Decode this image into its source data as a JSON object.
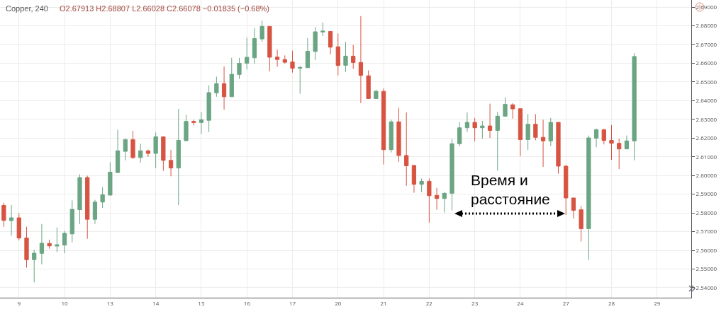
{
  "chart_data": {
    "type": "candlestick",
    "title": "Copper, 240",
    "subtitle": "O2.67913 H2.68807 L2.66028 C2.66078 −0.01835 (−0.68%)",
    "annotations": [
      "Время и расстояние"
    ],
    "categories": [
      null,
      null,
      "9",
      null,
      null,
      null,
      null,
      null,
      "10",
      null,
      null,
      null,
      null,
      null,
      "13",
      null,
      null,
      null,
      null,
      null,
      "14",
      null,
      null,
      null,
      null,
      null,
      "15",
      null,
      null,
      null,
      null,
      null,
      "16",
      null,
      null,
      null,
      null,
      null,
      "17",
      null,
      null,
      null,
      null,
      null,
      "20",
      null,
      null,
      null,
      null,
      null,
      "21",
      null,
      null,
      null,
      null,
      null,
      "22",
      null,
      null,
      null,
      null,
      null,
      "23",
      null,
      null,
      null,
      null,
      null,
      "24",
      null,
      null,
      null,
      null,
      null,
      "27",
      null,
      null,
      null,
      null,
      null,
      "28",
      null,
      null,
      null,
      null,
      null,
      "29",
      null,
      null,
      null,
      null
    ],
    "ohlc": [
      [
        2.584,
        2.5855,
        2.5726,
        2.576
      ],
      [
        2.5759,
        2.5842,
        2.5678,
        2.5774
      ],
      [
        2.5774,
        2.5798,
        2.5653,
        2.5666
      ],
      [
        2.5666,
        2.5726,
        2.5508,
        2.555
      ],
      [
        2.555,
        2.5603,
        2.5429,
        2.5585
      ],
      [
        2.5584,
        2.5741,
        2.5525,
        2.5638
      ],
      [
        2.5637,
        2.5657,
        2.5609,
        2.5624
      ],
      [
        2.5623,
        2.5722,
        2.559,
        2.563
      ],
      [
        2.5628,
        2.5704,
        2.5584,
        2.5691
      ],
      [
        2.5688,
        2.5867,
        2.5643,
        2.5819
      ],
      [
        2.5817,
        2.6006,
        2.5741,
        2.5989
      ],
      [
        2.5989,
        2.5999,
        2.5662,
        2.5766
      ],
      [
        2.5766,
        2.587,
        2.5741,
        2.5858
      ],
      [
        2.5858,
        2.5937,
        2.5827,
        2.5897
      ],
      [
        2.5895,
        2.6071,
        2.5895,
        2.6018
      ],
      [
        2.6016,
        2.6245,
        2.6012,
        2.6132
      ],
      [
        2.6129,
        2.6198,
        2.6081,
        2.6192
      ],
      [
        2.6192,
        2.6239,
        2.6088,
        2.6096
      ],
      [
        2.6096,
        2.617,
        2.6069,
        2.6132
      ],
      [
        2.6132,
        2.6138,
        2.61,
        2.6118
      ],
      [
        2.6118,
        2.623,
        2.604,
        2.6207
      ],
      [
        2.6207,
        2.6207,
        2.6025,
        2.6081
      ],
      [
        2.6081,
        2.6137,
        2.5996,
        2.604
      ],
      [
        2.604,
        2.6356,
        2.5842,
        2.6188
      ],
      [
        2.6186,
        2.6324,
        2.6186,
        2.6289
      ],
      [
        2.6289,
        2.6298,
        2.6268,
        2.6283
      ],
      [
        2.6283,
        2.634,
        2.6222,
        2.6298
      ],
      [
        2.6295,
        2.6482,
        2.6232,
        2.6443
      ],
      [
        2.6442,
        2.6528,
        2.6421,
        2.6491
      ],
      [
        2.6491,
        2.6583,
        2.6352,
        2.6421
      ],
      [
        2.6421,
        2.6629,
        2.6421,
        2.6541
      ],
      [
        2.654,
        2.6629,
        2.6516,
        2.66
      ],
      [
        2.66,
        2.6736,
        2.6566,
        2.6632
      ],
      [
        2.6629,
        2.6787,
        2.6598,
        2.6732
      ],
      [
        2.673,
        2.6828,
        2.6715,
        2.6797
      ],
      [
        2.6797,
        2.6797,
        2.6557,
        2.6632
      ],
      [
        2.6633,
        2.6673,
        2.6581,
        2.662
      ],
      [
        2.662,
        2.6642,
        2.6598,
        2.6605
      ],
      [
        2.6607,
        2.6667,
        2.655,
        2.6573
      ],
      [
        2.6573,
        2.6585,
        2.6437,
        2.6578
      ],
      [
        2.6576,
        2.6734,
        2.6576,
        2.6664
      ],
      [
        2.6663,
        2.6793,
        2.6617,
        2.6768
      ],
      [
        2.6767,
        2.6818,
        2.6745,
        2.6772
      ],
      [
        2.677,
        2.677,
        2.6648,
        2.6686
      ],
      [
        2.6688,
        2.6759,
        2.6535,
        2.6588
      ],
      [
        2.6589,
        2.6714,
        2.6554,
        2.6638
      ],
      [
        2.6638,
        2.6698,
        2.657,
        2.6604
      ],
      [
        2.6604,
        2.6852,
        2.6387,
        2.6535
      ],
      [
        2.6533,
        2.6562,
        2.6411,
        2.6411
      ],
      [
        2.6411,
        2.6459,
        2.6411,
        2.645
      ],
      [
        2.645,
        2.6465,
        2.6059,
        2.6138
      ],
      [
        2.6138,
        2.6298,
        2.6123,
        2.6287
      ],
      [
        2.6287,
        2.6362,
        2.6073,
        2.6107
      ],
      [
        2.6107,
        2.6337,
        2.5945,
        2.6052
      ],
      [
        2.6054,
        2.6054,
        2.5908,
        2.5953
      ],
      [
        2.5953,
        2.5984,
        2.5911,
        2.5969
      ],
      [
        2.5969,
        2.5984,
        2.5748,
        2.5892
      ],
      [
        2.5894,
        2.5934,
        2.5817,
        2.5877
      ],
      [
        2.5877,
        2.5911,
        2.5802,
        2.5905
      ],
      [
        2.5905,
        2.6195,
        2.5813,
        2.617
      ],
      [
        2.617,
        2.6285,
        2.6157,
        2.6255
      ],
      [
        2.6255,
        2.6337,
        2.6232,
        2.6284
      ],
      [
        2.6284,
        2.6308,
        2.6182,
        2.6255
      ],
      [
        2.6255,
        2.6292,
        2.6197,
        2.6265
      ],
      [
        2.6265,
        2.6384,
        2.6201,
        2.6241
      ],
      [
        2.6241,
        2.634,
        2.6025,
        2.6317
      ],
      [
        2.6317,
        2.6418,
        2.6317,
        2.638
      ],
      [
        2.6378,
        2.6386,
        2.6304,
        2.6356
      ],
      [
        2.6357,
        2.6357,
        2.6104,
        2.6192
      ],
      [
        2.6192,
        2.6329,
        2.6136,
        2.6274
      ],
      [
        2.6274,
        2.6328,
        2.6188,
        2.6204
      ],
      [
        2.6204,
        2.6298,
        2.6046,
        2.6185
      ],
      [
        2.6185,
        2.6308,
        2.6157,
        2.6284
      ],
      [
        2.6284,
        2.6284,
        2.601,
        2.605
      ],
      [
        2.605,
        2.6056,
        2.5789,
        2.588
      ],
      [
        2.588,
        2.588,
        2.577,
        2.5814
      ],
      [
        2.5817,
        2.5836,
        2.5647,
        2.5716
      ],
      [
        2.5716,
        2.6214,
        2.5549,
        2.6201
      ],
      [
        2.6199,
        2.6251,
        2.6151,
        2.6245
      ],
      [
        2.6245,
        2.6249,
        2.6166,
        2.6187
      ],
      [
        2.6188,
        2.627,
        2.6084,
        2.6172
      ],
      [
        2.6172,
        2.6197,
        2.6034,
        2.6142
      ],
      [
        2.6142,
        2.6214,
        2.6142,
        2.6185
      ],
      [
        2.6185,
        2.6654,
        2.6081,
        2.6636
      ],
      null,
      null,
      null,
      null,
      null,
      null,
      null
    ],
    "colors": [
      "#d75442",
      "#6ba583",
      "#d75442",
      "#d75442",
      "#6ba583",
      "#6ba583",
      "#d75442",
      "#6ba583",
      "#6ba583",
      "#6ba583",
      "#6ba583",
      "#d75442",
      "#6ba583",
      "#6ba583",
      "#6ba583",
      "#6ba583",
      "#6ba583",
      "#d75442",
      "#6ba583",
      "#d75442",
      "#6ba583",
      "#d75442",
      "#d75442",
      "#6ba583",
      "#6ba583",
      "#d75442",
      "#6ba583",
      "#6ba583",
      "#6ba583",
      "#d75442",
      "#6ba583",
      "#6ba583",
      "#6ba583",
      "#6ba583",
      "#6ba583",
      "#d75442",
      "#d75442",
      "#d75442",
      "#d75442",
      "#6ba583",
      "#6ba583",
      "#6ba583",
      "#6ba583",
      "#d75442",
      "#d75442",
      "#6ba583",
      "#d75442",
      "#d75442",
      "#d75442",
      "#6ba583",
      "#d75442",
      "#6ba583",
      "#d75442",
      "#d75442",
      "#d75442",
      "#6ba583",
      "#d75442",
      "#d75442",
      "#6ba583",
      "#6ba583",
      "#6ba583",
      "#6ba583",
      "#d75442",
      "#6ba583",
      "#d75442",
      "#6ba583",
      "#6ba583",
      "#d75442",
      "#d75442",
      "#6ba583",
      "#d75442",
      "#d75442",
      "#6ba583",
      "#d75442",
      "#d75442",
      "#d75442",
      "#d75442",
      "#6ba583",
      "#6ba583",
      "#d75442",
      "#d75442",
      "#d75442",
      "#6ba583",
      "#6ba583",
      null,
      null,
      null,
      null,
      null,
      null,
      null
    ],
    "ylim": [
      2.5347,
      2.6938
    ],
    "yticks": [
      {
        "value": 2.54,
        "label": "2.54000"
      },
      {
        "value": 2.55,
        "label": "2.55000"
      },
      {
        "value": 2.56,
        "label": "2.56000"
      },
      {
        "value": 2.57,
        "label": "2.57000"
      },
      {
        "value": 2.58,
        "label": "2.58000"
      },
      {
        "value": 2.59,
        "label": "2.59000"
      },
      {
        "value": 2.6,
        "label": "2.60000"
      },
      {
        "value": 2.61,
        "label": "2.61000"
      },
      {
        "value": 2.62,
        "label": "2.62000"
      },
      {
        "value": 2.63,
        "label": "2.63000"
      },
      {
        "value": 2.64,
        "label": "2.64000"
      },
      {
        "value": 2.65,
        "label": "2.65000"
      },
      {
        "value": 2.66,
        "label": "2.66000"
      },
      {
        "value": 2.67,
        "label": "2.67000"
      },
      {
        "value": 2.68,
        "label": "2.68000"
      },
      {
        "value": 2.69,
        "label": "2.69000"
      }
    ],
    "grid": true
  }
}
